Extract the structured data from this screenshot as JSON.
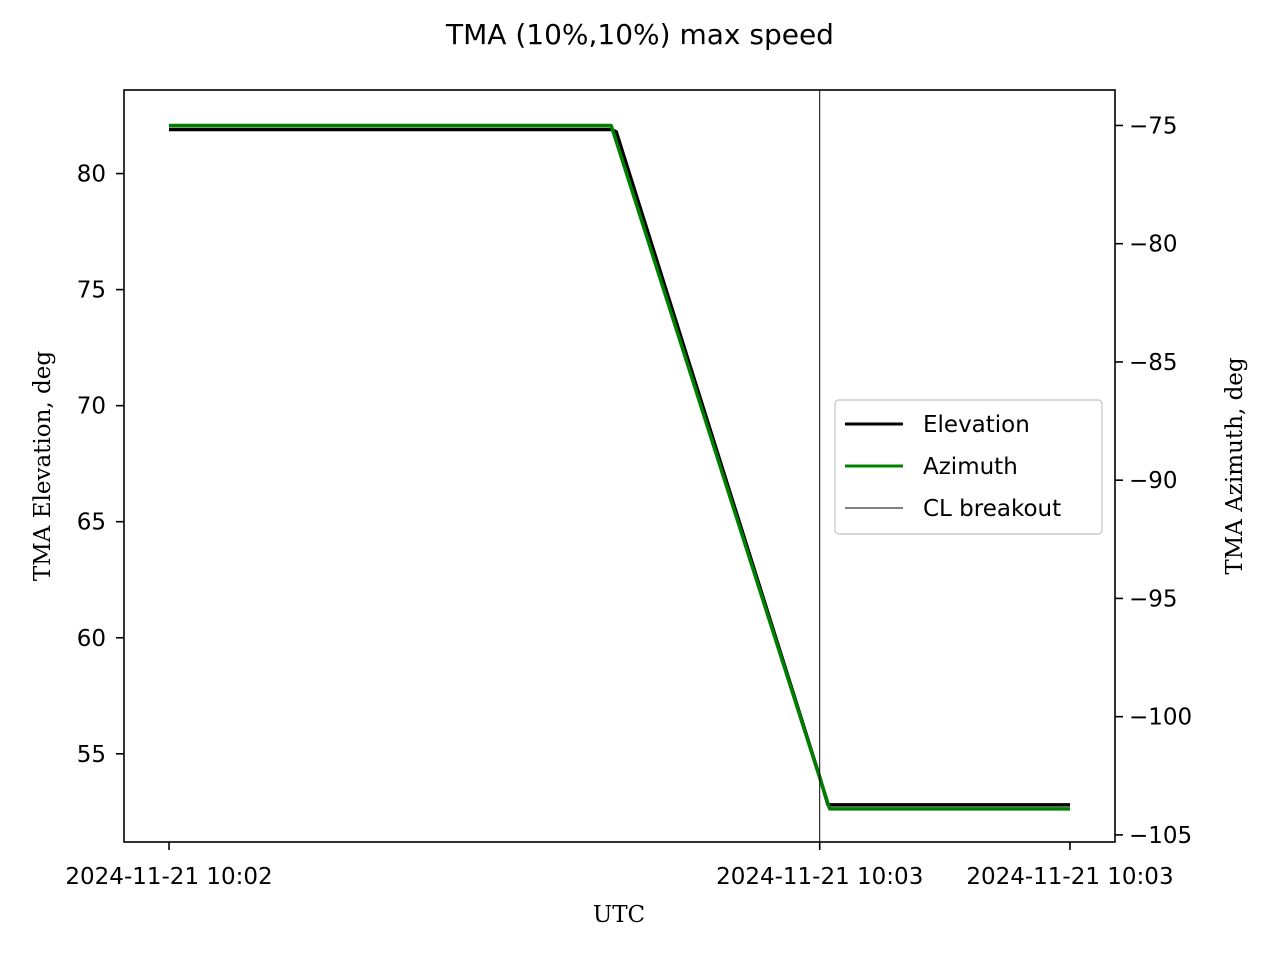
{
  "chart_data": {
    "type": "line",
    "title": "TMA (10%,10%) max speed",
    "xlabel": "UTC",
    "ylabel": "TMA Elevation, deg",
    "y2label": "TMA Azimuth, deg",
    "x_ticks": [
      "2024-11-21 10:02",
      "2024-11-21 10:03",
      "2024-11-21 10:03"
    ],
    "x_tick_seconds": [
      0,
      39.0,
      54.0
    ],
    "xlim_seconds": [
      -2.7,
      56.7
    ],
    "ylim": [
      51.2,
      83.6
    ],
    "y_ticks": [
      55,
      60,
      65,
      70,
      75,
      80
    ],
    "y2lim": [
      -105.3,
      -73.5
    ],
    "y2_ticks": [
      -105,
      -100,
      -95,
      -90,
      -85,
      -80,
      -75
    ],
    "series": [
      {
        "name": "Elevation",
        "axis": "left",
        "color": "#000000",
        "x_seconds": [
          0,
          26.5,
          26.8,
          39.0,
          39.5,
          54.0
        ],
        "values": [
          81.9,
          81.9,
          81.8,
          54.0,
          52.8,
          52.8
        ]
      },
      {
        "name": "Azimuth",
        "axis": "right",
        "color": "#008000",
        "x_seconds": [
          0,
          26.5,
          39.6,
          54.0
        ],
        "values": [
          -75.0,
          -75.0,
          -103.9,
          -103.9
        ]
      }
    ],
    "vlines": [
      {
        "name": "CL breakout",
        "x_seconds": 39.0,
        "color": "#000000"
      }
    ],
    "legend": {
      "placement": "center-right",
      "entries": [
        "Elevation",
        "Azimuth",
        "CL breakout"
      ]
    },
    "grid": false
  }
}
